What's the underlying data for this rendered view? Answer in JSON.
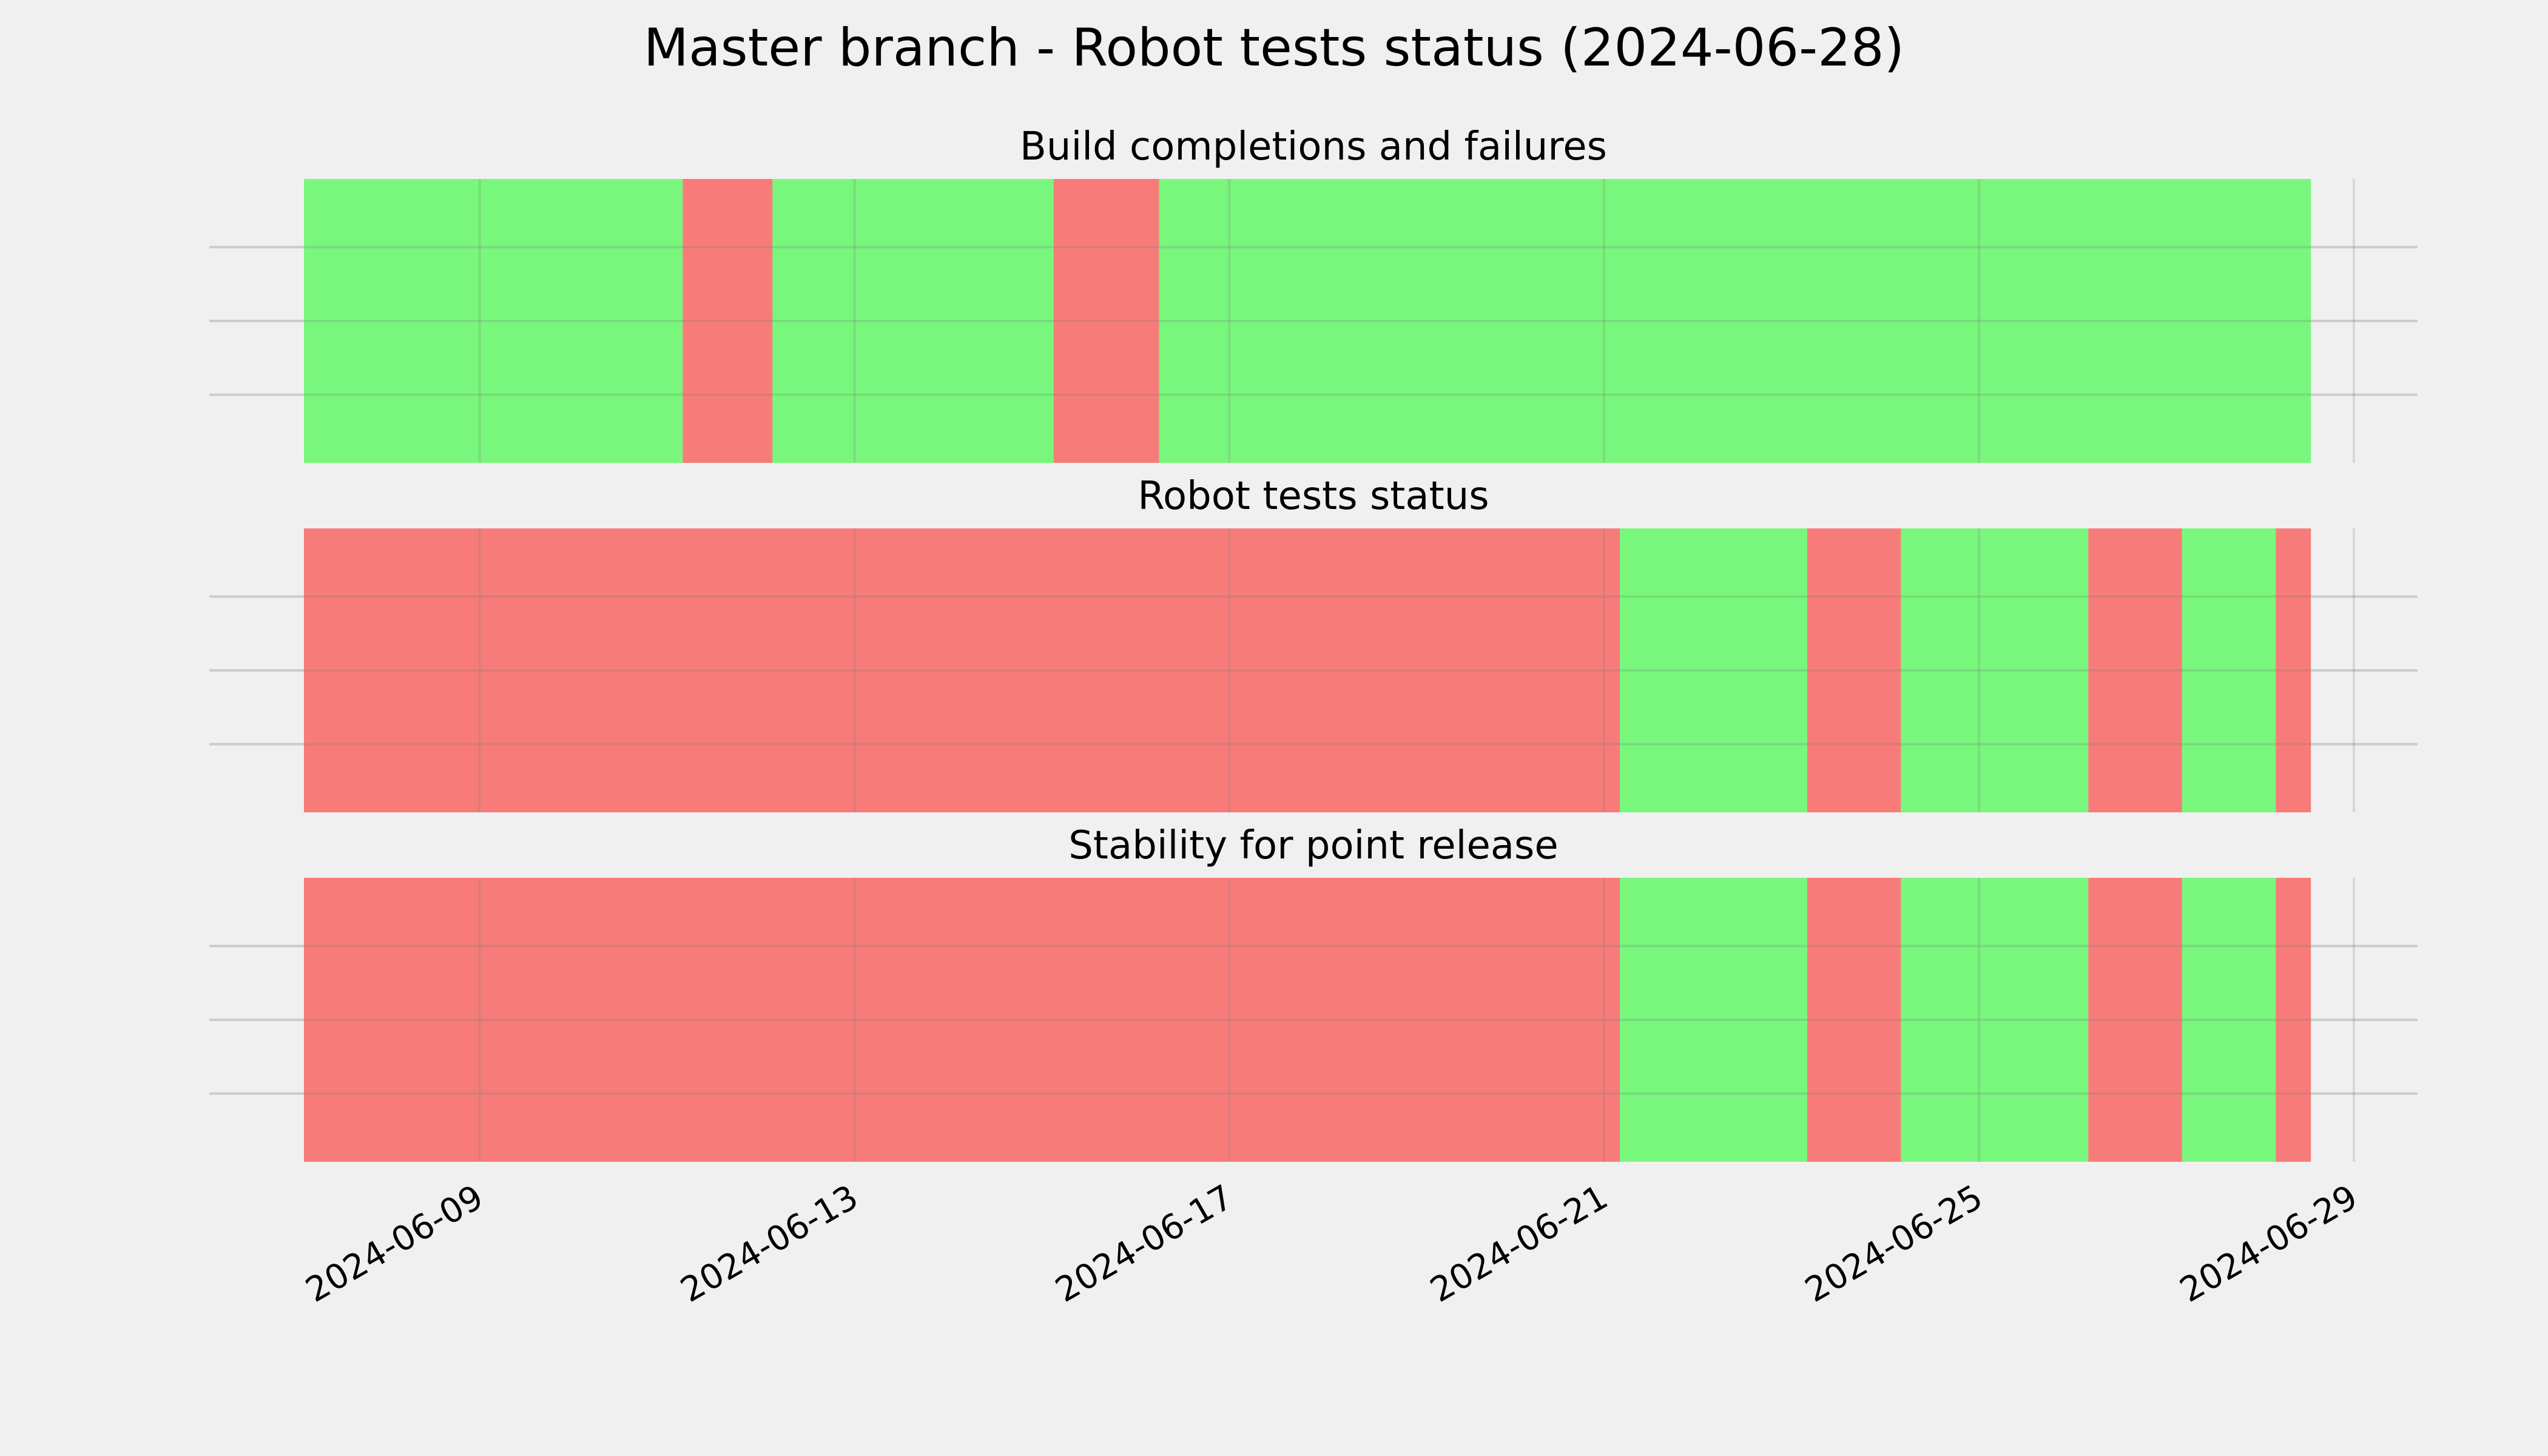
{
  "title": "Master branch - Robot tests status (2024-06-28)",
  "colors": {
    "background": "#f0f0f0",
    "pass": "#74f777",
    "fail": "#f77774",
    "grid": "#cbcbcb"
  },
  "chart_data": [
    {
      "type": "timeline",
      "title": "Build completions and failures",
      "xlim": [
        "2024-06-07T03:00",
        "2024-06-29T00:00"
      ],
      "xticks": [
        "2024-06-09",
        "2024-06-13",
        "2024-06-17",
        "2024-06-21",
        "2024-06-25",
        "2024-06-29"
      ],
      "grid": true,
      "segments": [
        {
          "start": "2024-06-07T03:00",
          "end": "2024-06-11T04:00",
          "status": "pass"
        },
        {
          "start": "2024-06-11T04:00",
          "end": "2024-06-12T03:00",
          "status": "fail"
        },
        {
          "start": "2024-06-12T03:00",
          "end": "2024-06-15T03:00",
          "status": "pass"
        },
        {
          "start": "2024-06-15T03:00",
          "end": "2024-06-16T06:00",
          "status": "fail"
        },
        {
          "start": "2024-06-16T06:00",
          "end": "2024-06-28T13:00",
          "status": "pass"
        }
      ]
    },
    {
      "type": "timeline",
      "title": "Robot tests status",
      "xlim": [
        "2024-06-07T03:00",
        "2024-06-29T00:00"
      ],
      "xticks": [
        "2024-06-09",
        "2024-06-13",
        "2024-06-17",
        "2024-06-21",
        "2024-06-25",
        "2024-06-29"
      ],
      "grid": true,
      "segments": [
        {
          "start": "2024-06-07T03:00",
          "end": "2024-06-21T04:00",
          "status": "fail"
        },
        {
          "start": "2024-06-21T04:00",
          "end": "2024-06-23T04:00",
          "status": "pass"
        },
        {
          "start": "2024-06-23T04:00",
          "end": "2024-06-24T04:00",
          "status": "fail"
        },
        {
          "start": "2024-06-24T04:00",
          "end": "2024-06-26T04:00",
          "status": "pass"
        },
        {
          "start": "2024-06-26T04:00",
          "end": "2024-06-27T04:00",
          "status": "fail"
        },
        {
          "start": "2024-06-27T04:00",
          "end": "2024-06-28T04:00",
          "status": "pass"
        },
        {
          "start": "2024-06-28T04:00",
          "end": "2024-06-28T13:00",
          "status": "fail"
        }
      ]
    },
    {
      "type": "timeline",
      "title": "Stability for point release",
      "xlim": [
        "2024-06-07T03:00",
        "2024-06-29T00:00"
      ],
      "xticks": [
        "2024-06-09",
        "2024-06-13",
        "2024-06-17",
        "2024-06-21",
        "2024-06-25",
        "2024-06-29"
      ],
      "grid": true,
      "segments": [
        {
          "start": "2024-06-07T03:00",
          "end": "2024-06-21T04:00",
          "status": "fail"
        },
        {
          "start": "2024-06-21T04:00",
          "end": "2024-06-23T04:00",
          "status": "pass"
        },
        {
          "start": "2024-06-23T04:00",
          "end": "2024-06-24T04:00",
          "status": "fail"
        },
        {
          "start": "2024-06-24T04:00",
          "end": "2024-06-26T04:00",
          "status": "pass"
        },
        {
          "start": "2024-06-26T04:00",
          "end": "2024-06-27T04:00",
          "status": "fail"
        },
        {
          "start": "2024-06-27T04:00",
          "end": "2024-06-28T04:00",
          "status": "pass"
        },
        {
          "start": "2024-06-28T04:00",
          "end": "2024-06-28T13:00",
          "status": "fail"
        }
      ]
    }
  ]
}
